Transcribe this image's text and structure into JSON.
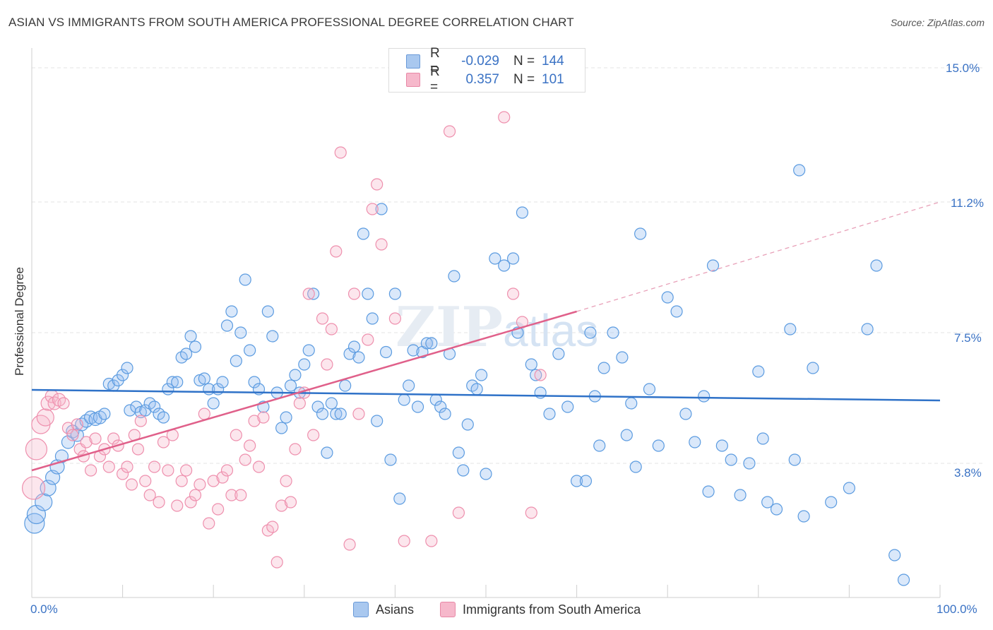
{
  "title": "ASIAN VS IMMIGRANTS FROM SOUTH AMERICA PROFESSIONAL DEGREE CORRELATION CHART",
  "source": "Source: ZipAtlas.com",
  "watermark": "ZIPatlas",
  "legend": {
    "rows": [
      {
        "r_label": "R =",
        "r_value": "-0.029",
        "n_label": "N =",
        "n_value": "144",
        "color": "#a9c8ef",
        "border": "#6a9ad8"
      },
      {
        "r_label": "R =",
        "r_value": "0.357",
        "n_label": "N =",
        "n_value": "101",
        "color": "#f6b8cb",
        "border": "#e888a6"
      }
    ]
  },
  "bottom_legend": [
    {
      "label": "Asians",
      "color": "#a9c8ef",
      "border": "#6a9ad8"
    },
    {
      "label": "Immigrants from South America",
      "color": "#f6b8cb",
      "border": "#e888a6"
    }
  ],
  "chart_data": {
    "type": "scatter",
    "title": "ASIAN VS IMMIGRANTS FROM SOUTH AMERICA PROFESSIONAL DEGREE CORRELATION CHART",
    "xlabel": "",
    "ylabel": "Professional Degree",
    "x_tick_labels": [
      "0.0%",
      "100.0%"
    ],
    "y_tick_labels": [
      "3.8%",
      "7.5%",
      "11.2%",
      "15.0%"
    ],
    "y_ticks": [
      3.8,
      7.5,
      11.2,
      15.0
    ],
    "xlim": [
      0,
      100
    ],
    "ylim": [
      0,
      15.4
    ],
    "grid": "horizontal dashed",
    "series": [
      {
        "name": "Asians",
        "color": "#5b9be0",
        "fill": "rgba(150,190,240,0.35)",
        "trend": {
          "x": [
            0,
            100
          ],
          "y": [
            5.88,
            5.58
          ],
          "style": "solid",
          "color": "#2f72c8"
        },
        "points": [
          [
            0.3,
            2.1,
            14
          ],
          [
            0.5,
            2.35,
            13
          ],
          [
            1.3,
            2.7,
            12
          ],
          [
            1.8,
            3.1,
            11
          ],
          [
            2.3,
            3.4,
            10
          ],
          [
            2.8,
            3.7,
            10
          ],
          [
            3.3,
            4.0,
            9
          ],
          [
            4.0,
            4.4,
            9
          ],
          [
            4.5,
            4.7,
            9
          ],
          [
            5.0,
            4.6,
            9
          ],
          [
            5.5,
            4.9,
            9
          ],
          [
            6.0,
            5.0,
            9
          ],
          [
            6.5,
            5.1,
            9
          ],
          [
            7.0,
            5.05,
            9
          ],
          [
            7.5,
            5.1,
            9
          ],
          [
            8.0,
            5.2,
            8
          ],
          [
            8.5,
            6.05,
            8
          ],
          [
            9.0,
            6.0,
            8
          ],
          [
            9.5,
            6.15,
            8
          ],
          [
            10.0,
            6.3,
            8
          ],
          [
            10.5,
            6.5,
            8
          ],
          [
            10.8,
            5.3,
            8
          ],
          [
            11.5,
            5.4,
            8
          ],
          [
            12.0,
            5.25,
            8
          ],
          [
            12.5,
            5.3,
            8
          ],
          [
            13.0,
            5.5,
            8
          ],
          [
            13.5,
            5.4,
            8
          ],
          [
            14.0,
            5.2,
            8
          ],
          [
            14.5,
            5.1,
            8
          ],
          [
            15.0,
            5.9,
            8
          ],
          [
            15.5,
            6.1,
            8
          ],
          [
            16.0,
            6.1,
            8
          ],
          [
            16.5,
            6.8,
            8
          ],
          [
            17.0,
            6.9,
            8
          ],
          [
            17.5,
            7.4,
            8
          ],
          [
            18.0,
            7.1,
            8
          ],
          [
            18.5,
            6.15,
            8
          ],
          [
            19.0,
            6.2,
            8
          ],
          [
            19.5,
            5.9,
            8
          ],
          [
            20.0,
            5.5,
            8
          ],
          [
            20.5,
            5.9,
            8
          ],
          [
            21.0,
            6.1,
            8
          ],
          [
            21.5,
            7.7,
            8
          ],
          [
            22.0,
            8.1,
            8
          ],
          [
            22.5,
            6.7,
            8
          ],
          [
            23.0,
            7.5,
            8
          ],
          [
            23.5,
            9.0,
            8
          ],
          [
            24.0,
            7.0,
            8
          ],
          [
            24.5,
            6.1,
            8
          ],
          [
            25.0,
            5.9,
            8
          ],
          [
            25.5,
            5.4,
            8
          ],
          [
            26.0,
            8.1,
            8
          ],
          [
            26.5,
            7.4,
            8
          ],
          [
            27.0,
            5.8,
            8
          ],
          [
            27.5,
            4.8,
            8
          ],
          [
            28.0,
            5.1,
            8
          ],
          [
            28.5,
            6.0,
            8
          ],
          [
            29.0,
            6.3,
            8
          ],
          [
            29.5,
            5.8,
            8
          ],
          [
            30.0,
            6.6,
            8
          ],
          [
            30.5,
            7.0,
            8
          ],
          [
            31.0,
            8.6,
            8
          ],
          [
            31.5,
            5.4,
            8
          ],
          [
            32.0,
            5.2,
            8
          ],
          [
            32.5,
            4.1,
            8
          ],
          [
            33.0,
            5.5,
            8
          ],
          [
            33.5,
            5.2,
            8
          ],
          [
            34.0,
            5.2,
            8
          ],
          [
            34.5,
            6.0,
            8
          ],
          [
            35.0,
            6.9,
            8
          ],
          [
            35.5,
            7.1,
            8
          ],
          [
            36.0,
            6.8,
            8
          ],
          [
            36.5,
            10.3,
            8
          ],
          [
            37.0,
            8.6,
            8
          ],
          [
            37.5,
            7.9,
            8
          ],
          [
            38.0,
            5.0,
            8
          ],
          [
            38.5,
            11.0,
            8
          ],
          [
            39.0,
            6.95,
            8
          ],
          [
            39.5,
            3.9,
            8
          ],
          [
            40.0,
            8.6,
            8
          ],
          [
            40.5,
            2.8,
            8
          ],
          [
            41.0,
            5.6,
            8
          ],
          [
            41.5,
            6.0,
            8
          ],
          [
            42.0,
            7.0,
            8
          ],
          [
            42.5,
            5.4,
            8
          ],
          [
            43.0,
            6.95,
            8
          ],
          [
            43.5,
            7.2,
            8
          ],
          [
            44.0,
            7.2,
            8
          ],
          [
            44.5,
            5.6,
            8
          ],
          [
            45.0,
            5.4,
            8
          ],
          [
            45.5,
            5.2,
            8
          ],
          [
            46.0,
            6.9,
            8
          ],
          [
            46.5,
            9.1,
            8
          ],
          [
            47.0,
            4.1,
            8
          ],
          [
            47.5,
            3.6,
            8
          ],
          [
            48.0,
            4.9,
            8
          ],
          [
            48.5,
            6.0,
            8
          ],
          [
            49.0,
            5.9,
            8
          ],
          [
            49.5,
            6.3,
            8
          ],
          [
            50.0,
            3.5,
            8
          ],
          [
            51.0,
            9.6,
            8
          ],
          [
            52.0,
            9.4,
            8
          ],
          [
            53.0,
            9.6,
            8
          ],
          [
            53.5,
            7.5,
            8
          ],
          [
            54.0,
            10.9,
            8
          ],
          [
            55.0,
            6.6,
            8
          ],
          [
            55.5,
            6.3,
            8
          ],
          [
            56.0,
            5.8,
            8
          ],
          [
            57.0,
            5.2,
            8
          ],
          [
            58.0,
            6.9,
            8
          ],
          [
            59.0,
            5.4,
            8
          ],
          [
            60.0,
            3.3,
            8
          ],
          [
            61.0,
            3.3,
            8
          ],
          [
            61.5,
            7.5,
            8
          ],
          [
            62.0,
            5.7,
            8
          ],
          [
            62.5,
            4.3,
            8
          ],
          [
            63.0,
            6.5,
            8
          ],
          [
            64.0,
            7.5,
            8
          ],
          [
            65.0,
            6.8,
            8
          ],
          [
            65.5,
            4.6,
            8
          ],
          [
            66.0,
            5.5,
            8
          ],
          [
            66.5,
            3.7,
            8
          ],
          [
            67.0,
            10.3,
            8
          ],
          [
            68.0,
            5.9,
            8
          ],
          [
            69.0,
            4.3,
            8
          ],
          [
            70.0,
            8.5,
            8
          ],
          [
            71.0,
            8.1,
            8
          ],
          [
            72.0,
            5.2,
            8
          ],
          [
            73.0,
            4.4,
            8
          ],
          [
            74.0,
            5.7,
            8
          ],
          [
            74.5,
            3.0,
            8
          ],
          [
            75.0,
            9.4,
            8
          ],
          [
            76.0,
            4.3,
            8
          ],
          [
            77.0,
            3.9,
            8
          ],
          [
            78.0,
            2.9,
            8
          ],
          [
            79.0,
            3.8,
            8
          ],
          [
            80.0,
            6.4,
            8
          ],
          [
            80.5,
            4.5,
            8
          ],
          [
            81.0,
            2.7,
            8
          ],
          [
            82.0,
            2.5,
            8
          ],
          [
            83.5,
            7.6,
            8
          ],
          [
            84.0,
            3.9,
            8
          ],
          [
            84.5,
            12.1,
            8
          ],
          [
            85.0,
            2.3,
            8
          ],
          [
            86.0,
            6.5,
            8
          ],
          [
            88.0,
            2.7,
            8
          ],
          [
            90.0,
            3.1,
            8
          ],
          [
            92.0,
            7.6,
            8
          ],
          [
            93.0,
            9.4,
            8
          ],
          [
            95.0,
            1.2,
            8
          ],
          [
            96.0,
            0.5,
            8
          ]
        ]
      },
      {
        "name": "Immigrants from South America",
        "color": "#ee8fad",
        "fill": "rgba(246,184,203,0.35)",
        "trend": {
          "x": [
            0,
            60
          ],
          "y": [
            3.6,
            8.1
          ],
          "style": "solid",
          "color": "#e0608a",
          "dashed_to": {
            "x": 100,
            "y": 11.2
          }
        },
        "points": [
          [
            0.2,
            3.1,
            16
          ],
          [
            0.5,
            4.2,
            15
          ],
          [
            1.0,
            4.9,
            13
          ],
          [
            1.5,
            5.1,
            12
          ],
          [
            1.8,
            5.5,
            10
          ],
          [
            2.2,
            5.7,
            9
          ],
          [
            2.5,
            5.5,
            9
          ],
          [
            3.0,
            5.6,
            9
          ],
          [
            3.5,
            5.5,
            8
          ],
          [
            4.0,
            4.8,
            8
          ],
          [
            4.5,
            4.6,
            8
          ],
          [
            5.0,
            4.9,
            8
          ],
          [
            5.3,
            4.2,
            8
          ],
          [
            5.7,
            4.0,
            8
          ],
          [
            6.0,
            4.4,
            8
          ],
          [
            6.5,
            3.6,
            8
          ],
          [
            7.0,
            4.5,
            8
          ],
          [
            7.5,
            4.0,
            8
          ],
          [
            8.0,
            4.2,
            8
          ],
          [
            8.5,
            3.7,
            8
          ],
          [
            9.0,
            4.5,
            8
          ],
          [
            9.5,
            4.3,
            8
          ],
          [
            10.0,
            3.5,
            8
          ],
          [
            10.5,
            3.7,
            8
          ],
          [
            11.0,
            3.2,
            8
          ],
          [
            11.3,
            4.6,
            8
          ],
          [
            11.7,
            4.2,
            8
          ],
          [
            12.0,
            5.0,
            8
          ],
          [
            12.5,
            3.3,
            8
          ],
          [
            13.0,
            2.9,
            8
          ],
          [
            13.5,
            3.7,
            8
          ],
          [
            14.0,
            2.7,
            8
          ],
          [
            14.5,
            4.4,
            8
          ],
          [
            15.0,
            3.6,
            8
          ],
          [
            15.5,
            4.6,
            8
          ],
          [
            16.0,
            2.6,
            8
          ],
          [
            16.5,
            3.3,
            8
          ],
          [
            17.0,
            3.6,
            8
          ],
          [
            17.5,
            2.7,
            8
          ],
          [
            18.0,
            2.9,
            8
          ],
          [
            18.5,
            3.2,
            8
          ],
          [
            19.0,
            5.2,
            8
          ],
          [
            19.5,
            2.1,
            8
          ],
          [
            20.0,
            3.3,
            8
          ],
          [
            20.5,
            2.5,
            8
          ],
          [
            21.0,
            3.4,
            8
          ],
          [
            21.5,
            3.6,
            8
          ],
          [
            22.0,
            2.9,
            8
          ],
          [
            22.5,
            4.6,
            8
          ],
          [
            23.0,
            2.9,
            8
          ],
          [
            23.5,
            3.9,
            8
          ],
          [
            24.0,
            4.3,
            8
          ],
          [
            24.5,
            5.0,
            8
          ],
          [
            25.0,
            3.7,
            8
          ],
          [
            25.5,
            5.1,
            8
          ],
          [
            26.0,
            1.9,
            8
          ],
          [
            26.5,
            2.0,
            8
          ],
          [
            27.0,
            1.0,
            8
          ],
          [
            27.5,
            2.6,
            8
          ],
          [
            28.0,
            3.3,
            8
          ],
          [
            28.5,
            2.7,
            8
          ],
          [
            29.0,
            4.2,
            8
          ],
          [
            29.5,
            5.5,
            8
          ],
          [
            30.0,
            5.8,
            8
          ],
          [
            30.5,
            8.6,
            8
          ],
          [
            31.0,
            4.6,
            8
          ],
          [
            32.0,
            7.9,
            8
          ],
          [
            32.5,
            6.6,
            8
          ],
          [
            33.0,
            7.6,
            8
          ],
          [
            33.5,
            9.8,
            8
          ],
          [
            34.0,
            12.6,
            8
          ],
          [
            35.0,
            1.5,
            8
          ],
          [
            35.5,
            8.6,
            8
          ],
          [
            36.0,
            5.2,
            8
          ],
          [
            37.0,
            7.3,
            8
          ],
          [
            37.5,
            11.0,
            8
          ],
          [
            38.0,
            11.7,
            8
          ],
          [
            38.5,
            10.0,
            8
          ],
          [
            40.0,
            7.9,
            8
          ],
          [
            41.0,
            1.6,
            8
          ],
          [
            44.0,
            1.6,
            8
          ],
          [
            46.0,
            13.2,
            8
          ],
          [
            47.0,
            2.4,
            8
          ],
          [
            52.0,
            13.6,
            8
          ],
          [
            53.0,
            8.6,
            8
          ],
          [
            54.0,
            7.8,
            8
          ],
          [
            55.0,
            2.4,
            8
          ],
          [
            56.0,
            6.3,
            8
          ]
        ]
      }
    ]
  }
}
